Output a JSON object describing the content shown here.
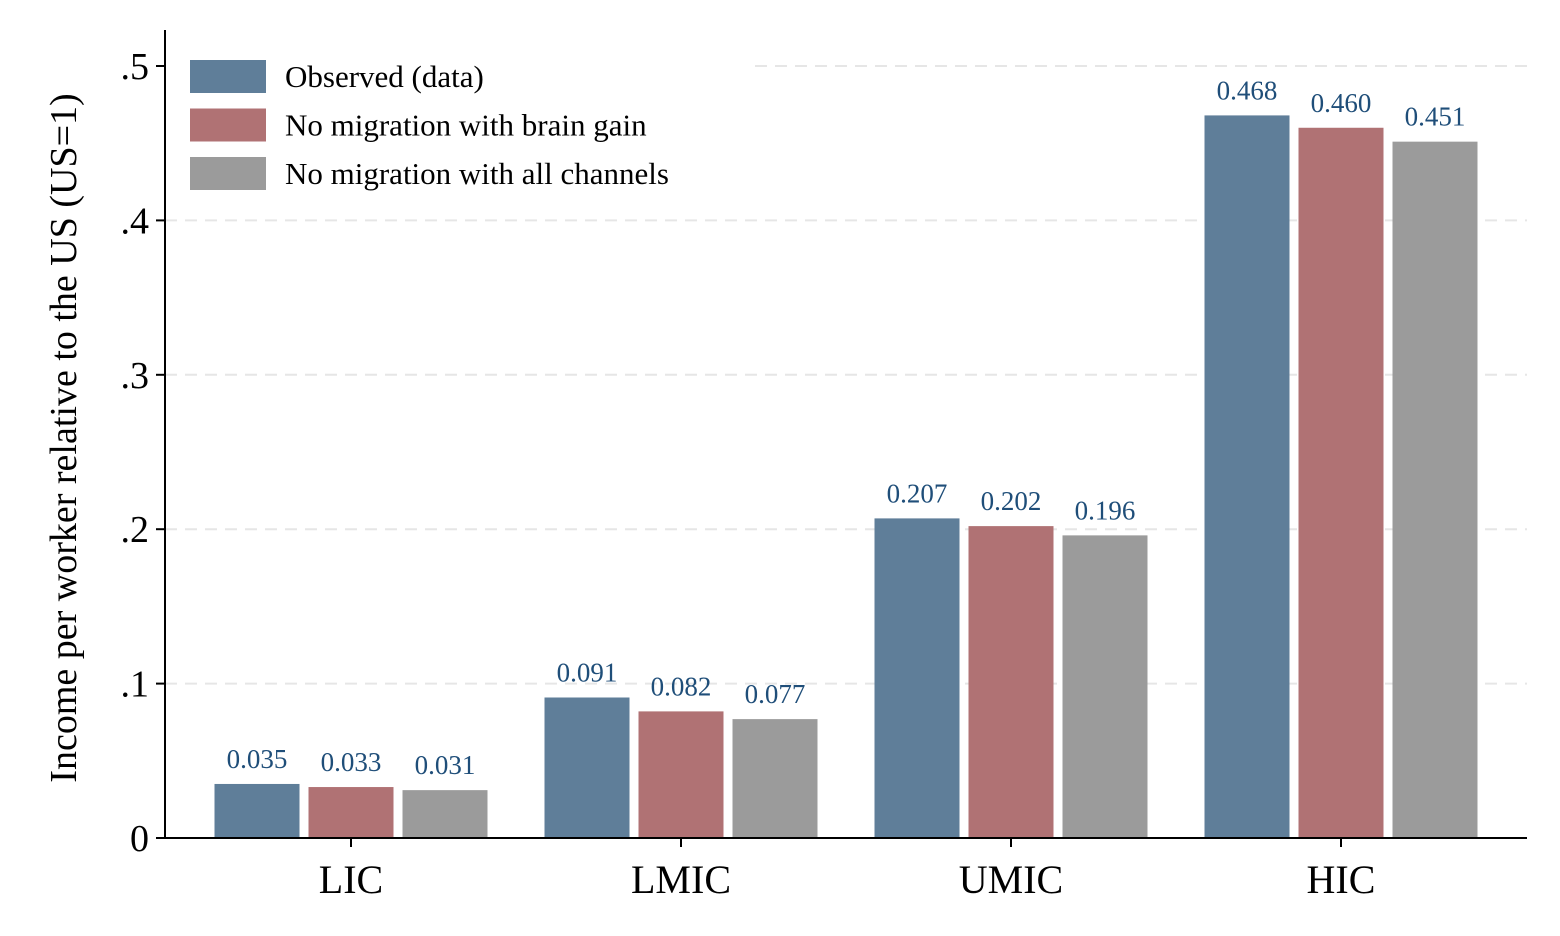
{
  "chart_data": {
    "type": "bar",
    "title": "",
    "xlabel": "",
    "ylabel": "Income per worker relative to the US (US=1)",
    "categories": [
      "LIC",
      "LMIC",
      "UMIC",
      "HIC"
    ],
    "series": [
      {
        "name": "Observed (data)",
        "color": "#5f7e99",
        "values": [
          0.035,
          0.091,
          0.207,
          0.468
        ],
        "labels": [
          "0.035",
          "0.091",
          "0.207",
          "0.468"
        ]
      },
      {
        "name": "No migration with brain gain",
        "color": "#b07274",
        "values": [
          0.033,
          0.082,
          0.202,
          0.46
        ],
        "labels": [
          "0.033",
          "0.082",
          "0.202",
          "0.460"
        ]
      },
      {
        "name": "No migration with all channels",
        "color": "#9b9b9b",
        "values": [
          0.031,
          0.077,
          0.196,
          0.451
        ],
        "labels": [
          "0.031",
          "0.077",
          "0.196",
          "0.451"
        ]
      }
    ],
    "ylim": [
      0,
      0.5
    ],
    "yticks": [
      0,
      0.1,
      0.2,
      0.3,
      0.4,
      0.5
    ],
    "ytick_labels": [
      "0",
      ".1",
      ".2",
      ".3",
      ".4",
      ".5"
    ],
    "grid": true,
    "legend_position": "top-left",
    "value_label_color": "#1f4e79"
  }
}
